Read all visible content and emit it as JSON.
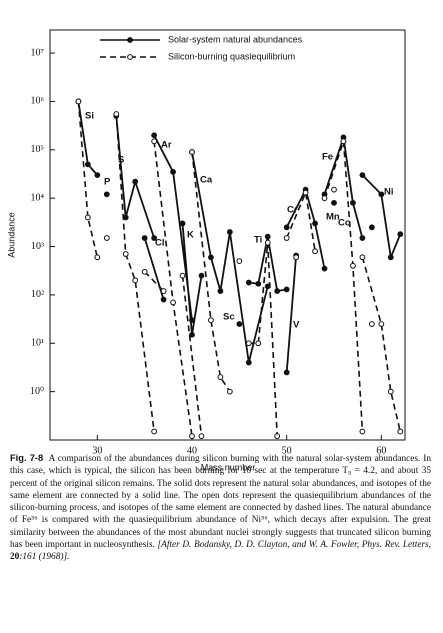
{
  "chart_data": {
    "type": "line",
    "log_y": true,
    "grid": false,
    "xlabel": "Mass number",
    "ylabel": "Abundance",
    "xlim": [
      25,
      62.5
    ],
    "ylim": [
      0.1,
      30000000
    ],
    "xticks": [
      30,
      40,
      50,
      60
    ],
    "yticks": [
      {
        "value": 1,
        "label": "10⁰"
      },
      {
        "value": 10,
        "label": "10¹"
      },
      {
        "value": 100,
        "label": "10²"
      },
      {
        "value": 1000,
        "label": "10³"
      },
      {
        "value": 10000,
        "label": "10⁴"
      },
      {
        "value": 100000,
        "label": "10⁵"
      },
      {
        "value": 1000000,
        "label": "10⁶"
      },
      {
        "value": 10000000,
        "label": "10⁷"
      }
    ],
    "series": [
      {
        "name": "Solar-system natural abundances",
        "color": "#111111",
        "dashed": false,
        "filled": true,
        "x": [
          28,
          29,
          30,
          null,
          31,
          null,
          32,
          33,
          34,
          36,
          null,
          35,
          37,
          null,
          36,
          38,
          40,
          null,
          39,
          40,
          41,
          null,
          40,
          42,
          43,
          44,
          46,
          48,
          null,
          45,
          null,
          46,
          47,
          48,
          49,
          50,
          null,
          50,
          51,
          null,
          50,
          52,
          53,
          54,
          null,
          55,
          null,
          54,
          56,
          57,
          58,
          null,
          59,
          null,
          58,
          60,
          61,
          62
        ],
        "values": [
          1000000,
          50000,
          30000,
          null,
          12000,
          null,
          500000,
          4000,
          22000,
          1500,
          null,
          1500,
          80,
          null,
          200000,
          35000,
          30,
          null,
          3000,
          15,
          250,
          null,
          90000,
          600,
          120,
          2000,
          4,
          150,
          null,
          25,
          null,
          180,
          170,
          1600,
          120,
          130,
          null,
          2.5,
          650,
          null,
          2500,
          15000,
          3000,
          350,
          null,
          8000,
          null,
          12000,
          180000,
          8000,
          1500,
          null,
          2500,
          null,
          30000,
          12000,
          600,
          1800
        ]
      },
      {
        "name": "Silicon-burning quasiequilibrium",
        "color": "#111111",
        "dashed": true,
        "filled": false,
        "x": [
          28,
          29,
          30,
          null,
          31,
          null,
          32,
          33,
          34,
          36,
          null,
          35,
          37,
          null,
          36,
          38,
          40,
          null,
          39,
          41,
          null,
          40,
          42,
          43,
          44,
          null,
          45,
          null,
          46,
          47,
          48,
          49,
          null,
          51,
          null,
          50,
          52,
          53,
          null,
          55,
          null,
          54,
          56,
          57,
          58,
          null,
          59,
          null,
          58,
          60,
          61,
          62
        ],
        "values": [
          1000000,
          4000,
          600,
          null,
          1500,
          null,
          550000,
          700,
          200,
          0.15,
          null,
          300,
          120,
          null,
          150000,
          70,
          0.12,
          null,
          250,
          0.12,
          null,
          90000,
          30,
          2,
          1,
          null,
          500,
          null,
          10,
          10,
          1200,
          0.12,
          null,
          600,
          null,
          1500,
          13000,
          800,
          null,
          15000,
          null,
          10000,
          150000,
          400,
          0.15,
          null,
          25,
          null,
          600,
          25,
          1,
          0.15
        ]
      }
    ],
    "annotations": [
      "Si",
      "P",
      "S",
      "Cl",
      "Ar",
      "K",
      "Ca",
      "Sc",
      "Ti",
      "V",
      "Cr",
      "Mn",
      "Fe",
      "Co",
      "Ni"
    ]
  },
  "caption": {
    "label": "Fig. 7-8",
    "text": "A comparison of the abundances during silicon burning with the natural solar-system abundances. In this case, which is typical, the silicon has been burning for 10 sec at the temperature T₉ = 4.2, and about 35 percent of the original silicon remains. The solid dots represent the natural solar abundances, and isotopes of the same element are connected by a solid line. The open dots represent the quasiequilibrium abundances of the silicon-burning process, and isotopes of the same element are connected by dashed lines. The natural abundance of Fe⁵⁶ is compared with the quasiequilibrium abundance of Ni⁵⁶, which decays after expulsion. The great similarity between the abundances of the most abundant nuclei strongly suggests that truncated silicon burning has been important in nucleosynthesis.",
    "citation_pre": "[After D. Bodansky, D. D. Clayton, and W. A. Fowler, Phys. Rev. Letters,",
    "volume": "20",
    "citation_post": ":161 (1968)]."
  }
}
